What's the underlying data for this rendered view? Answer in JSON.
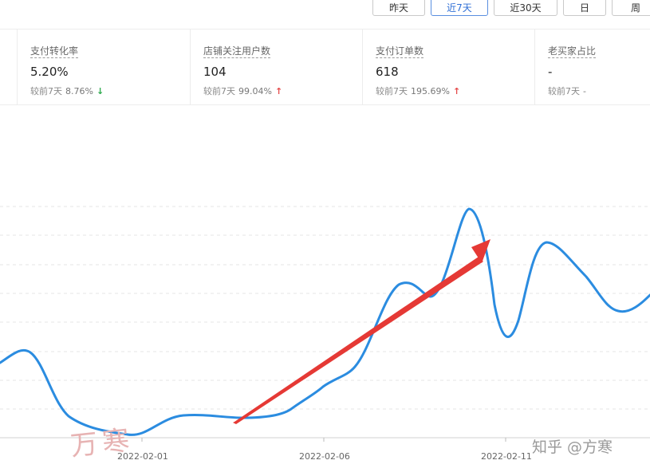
{
  "range_buttons": [
    {
      "label": "昨天",
      "active": false
    },
    {
      "label": "近7天",
      "active": true
    },
    {
      "label": "近30天",
      "active": false
    },
    {
      "label": "日",
      "active": false
    },
    {
      "label": "周",
      "active": false
    }
  ],
  "metrics": [
    {
      "name": "支付转化率",
      "value": "5.20%",
      "compare_label": "较前7天",
      "compare_pct": "8.76%",
      "trend": "down"
    },
    {
      "name": "店铺关注用户数",
      "value": "104",
      "compare_label": "较前7天",
      "compare_pct": "99.04%",
      "trend": "up"
    },
    {
      "name": "支付订单数",
      "value": "618",
      "compare_label": "较前7天",
      "compare_pct": "195.69%",
      "trend": "up"
    },
    {
      "name": "老买家占比",
      "value": "-",
      "compare_label": "较前7天",
      "compare_pct": "-",
      "trend": "none"
    }
  ],
  "chart_data": {
    "type": "line",
    "x_ticks": [
      "2022-02-01",
      "2022-02-06",
      "2022-02-11"
    ],
    "grid": true,
    "series_color": "#2b8ce0",
    "annotation_arrow_color": "#e53935"
  },
  "watermarks": {
    "zhihu": "知乎 @方寒",
    "signature": "万寒"
  },
  "colors": {
    "accent": "#2f6fd6",
    "up": "#e54b4b",
    "down": "#2aa84a"
  }
}
